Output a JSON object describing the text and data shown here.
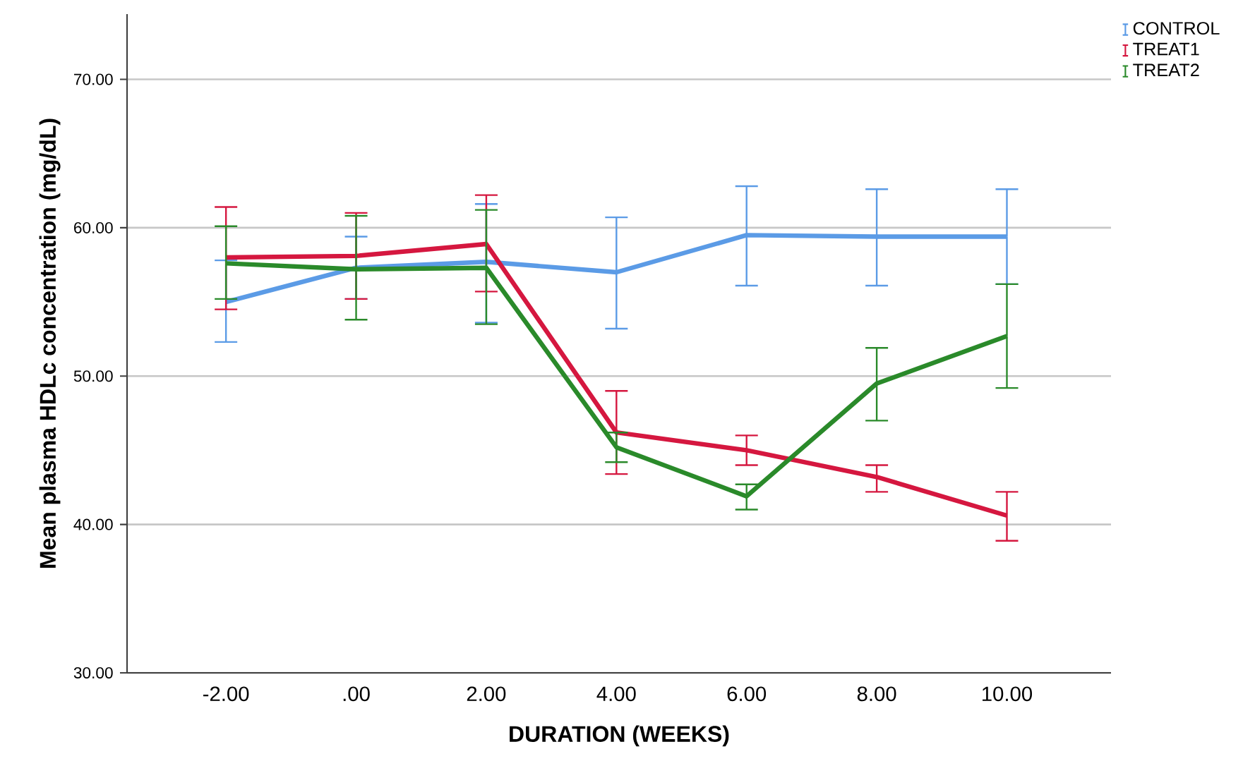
{
  "chart_data": {
    "type": "line",
    "xlabel": "DURATION (WEEKS)",
    "ylabel": "Mean plasma HDLc concentration (mg/dL)",
    "categories": [
      "-2.00",
      ".00",
      "2.00",
      "4.00",
      "6.00",
      "8.00",
      "10.00"
    ],
    "series": [
      {
        "name": "CONTROL",
        "color": "#5b9be6",
        "values": [
          55.0,
          57.3,
          57.7,
          57.0,
          59.5,
          59.4,
          59.4
        ],
        "errors": [
          [
            52.3,
            57.8
          ],
          [
            55.2,
            59.4
          ],
          [
            53.6,
            61.6
          ],
          [
            53.2,
            60.7
          ],
          [
            56.1,
            62.8
          ],
          [
            56.1,
            62.6
          ],
          [
            56.2,
            62.6
          ]
        ]
      },
      {
        "name": "TREAT1",
        "color": "#d5173f",
        "values": [
          58.0,
          58.1,
          58.9,
          46.2,
          45.0,
          43.2,
          40.6
        ],
        "errors": [
          [
            54.5,
            61.4
          ],
          [
            55.2,
            61.0
          ],
          [
            55.7,
            62.2
          ],
          [
            43.4,
            49.0
          ],
          [
            44.0,
            46.0
          ],
          [
            42.2,
            44.0
          ],
          [
            38.9,
            42.2
          ]
        ]
      },
      {
        "name": "TREAT2",
        "color": "#2a8a2a",
        "values": [
          57.6,
          57.2,
          57.3,
          45.2,
          41.9,
          49.5,
          52.7
        ],
        "errors": [
          [
            55.2,
            60.1
          ],
          [
            53.8,
            60.8
          ],
          [
            53.5,
            61.2
          ],
          [
            44.2,
            46.2
          ],
          [
            41.0,
            42.7
          ],
          [
            47.0,
            51.9
          ],
          [
            49.2,
            56.2
          ]
        ]
      }
    ],
    "ylim": [
      30,
      74.4
    ],
    "yticks": [
      {
        "value": 30,
        "label": "30.00"
      },
      {
        "value": 40,
        "label": "40.00"
      },
      {
        "value": 50,
        "label": "50.00"
      },
      {
        "value": 60,
        "label": "60.00"
      },
      {
        "value": 70,
        "label": "70.00"
      }
    ],
    "grid": "y",
    "legend": "top right",
    "marker": "none",
    "line_style": "solid"
  }
}
